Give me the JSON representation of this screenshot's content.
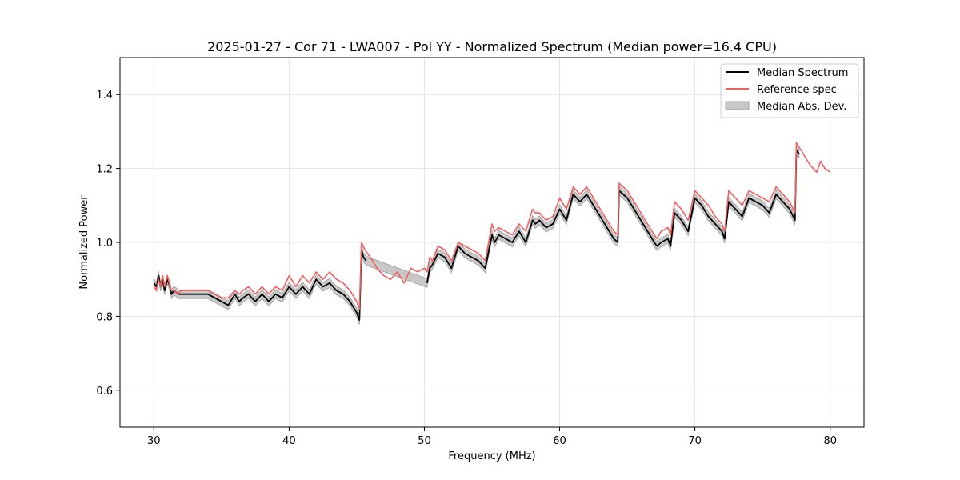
{
  "chart_data": {
    "type": "line",
    "title": "2025-01-27 - Cor 71 - LWA007 - Pol YY - Normalized Spectrum (Median power=16.4 CPU)",
    "xlabel": "Frequency (MHz)",
    "ylabel": "Normalized Power",
    "xlim": [
      27.5,
      82.5
    ],
    "ylim": [
      0.5,
      1.5
    ],
    "xticks": [
      30,
      40,
      50,
      60,
      70,
      80
    ],
    "yticks": [
      0.6,
      0.8,
      1.0,
      1.2,
      1.4
    ],
    "grid": true,
    "legend_position": "top-right",
    "colors": {
      "median": "#000000",
      "reference": "#f06060",
      "mad": "#c8c8c8",
      "mad_edge": "#a0a0a0"
    },
    "series": [
      {
        "name": "Median Spectrum",
        "x": [
          30.0,
          30.2,
          30.35,
          30.5,
          30.65,
          30.8,
          31.0,
          31.2,
          31.3,
          31.5,
          31.8,
          32.0,
          32.5,
          33.0,
          33.5,
          34.0,
          34.5,
          35.0,
          35.5,
          36.0,
          36.3,
          36.6,
          37.0,
          37.5,
          38.0,
          38.5,
          39.0,
          39.5,
          40.0,
          40.5,
          41.0,
          41.5,
          42.0,
          42.5,
          43.0,
          43.5,
          44.0,
          44.5,
          45.0,
          45.2,
          45.35,
          45.5,
          45.7,
          50.2,
          50.4,
          50.6,
          51.0,
          51.5,
          52.0,
          52.5,
          53.0,
          53.5,
          54.0,
          54.5,
          55.0,
          55.2,
          55.5,
          56.0,
          56.5,
          57.0,
          57.5,
          58.0,
          58.2,
          58.5,
          59.0,
          59.5,
          60.0,
          60.5,
          61.0,
          61.5,
          62.0,
          62.5,
          63.0,
          63.5,
          64.0,
          64.3,
          64.4,
          65.0,
          65.5,
          66.0,
          66.5,
          67.0,
          67.2,
          67.5,
          68.0,
          68.2,
          68.5,
          69.0,
          69.5,
          70.0,
          70.5,
          71.0,
          71.5,
          72.0,
          72.2,
          72.5,
          73.0,
          73.5,
          74.0,
          74.5,
          75.0,
          75.5,
          76.0,
          76.5,
          77.0,
          77.4,
          77.5,
          77.7
        ],
        "values": [
          0.89,
          0.88,
          0.91,
          0.88,
          0.9,
          0.87,
          0.9,
          0.88,
          0.86,
          0.87,
          0.86,
          0.86,
          0.86,
          0.86,
          0.86,
          0.86,
          0.85,
          0.84,
          0.83,
          0.86,
          0.84,
          0.85,
          0.86,
          0.84,
          0.86,
          0.84,
          0.86,
          0.85,
          0.88,
          0.86,
          0.88,
          0.86,
          0.9,
          0.88,
          0.89,
          0.87,
          0.86,
          0.84,
          0.81,
          0.79,
          0.98,
          0.96,
          0.95,
          0.89,
          0.93,
          0.94,
          0.97,
          0.96,
          0.93,
          0.99,
          0.97,
          0.96,
          0.95,
          0.93,
          1.02,
          1.0,
          1.02,
          1.01,
          1.0,
          1.03,
          1.0,
          1.06,
          1.05,
          1.06,
          1.04,
          1.05,
          1.09,
          1.06,
          1.13,
          1.11,
          1.13,
          1.1,
          1.07,
          1.04,
          1.01,
          1.0,
          1.14,
          1.12,
          1.09,
          1.06,
          1.03,
          1.0,
          0.99,
          1.0,
          1.01,
          0.99,
          1.08,
          1.06,
          1.03,
          1.12,
          1.1,
          1.07,
          1.05,
          1.03,
          1.01,
          1.11,
          1.09,
          1.07,
          1.12,
          1.11,
          1.1,
          1.08,
          1.13,
          1.11,
          1.09,
          1.06,
          1.25,
          1.24
        ]
      },
      {
        "name": "Reference spec",
        "x": [
          30.0,
          30.2,
          30.35,
          30.5,
          30.65,
          30.8,
          31.0,
          31.2,
          31.3,
          31.5,
          31.8,
          32.0,
          32.5,
          33.0,
          33.5,
          34.0,
          34.5,
          35.0,
          35.5,
          36.0,
          36.3,
          36.6,
          37.0,
          37.5,
          38.0,
          38.5,
          39.0,
          39.5,
          40.0,
          40.5,
          41.0,
          41.5,
          42.0,
          42.5,
          43.0,
          43.5,
          44.0,
          44.5,
          45.0,
          45.2,
          45.35,
          45.6,
          46.0,
          46.5,
          47.0,
          47.5,
          48.0,
          48.5,
          49.0,
          49.5,
          50.0,
          50.2,
          50.4,
          50.6,
          51.0,
          51.5,
          52.0,
          52.5,
          53.0,
          53.5,
          54.0,
          54.5,
          55.0,
          55.2,
          55.5,
          56.0,
          56.5,
          57.0,
          57.5,
          58.0,
          58.2,
          58.5,
          59.0,
          59.5,
          60.0,
          60.5,
          61.0,
          61.5,
          62.0,
          62.5,
          63.0,
          63.5,
          64.0,
          64.3,
          64.4,
          65.0,
          65.5,
          66.0,
          66.5,
          67.0,
          67.2,
          67.5,
          68.0,
          68.2,
          68.5,
          69.0,
          69.5,
          70.0,
          70.5,
          71.0,
          71.5,
          72.0,
          72.2,
          72.5,
          73.0,
          73.5,
          74.0,
          74.5,
          75.0,
          75.5,
          76.0,
          76.5,
          77.0,
          77.4,
          77.5,
          78.0,
          78.5,
          79.0,
          79.3,
          79.6,
          80.0
        ],
        "values": [
          0.88,
          0.87,
          0.9,
          0.88,
          0.91,
          0.88,
          0.91,
          0.88,
          0.87,
          0.87,
          0.86,
          0.87,
          0.87,
          0.87,
          0.87,
          0.87,
          0.86,
          0.85,
          0.85,
          0.87,
          0.86,
          0.87,
          0.88,
          0.86,
          0.88,
          0.86,
          0.88,
          0.87,
          0.91,
          0.88,
          0.91,
          0.89,
          0.92,
          0.9,
          0.92,
          0.9,
          0.89,
          0.87,
          0.84,
          0.82,
          1.0,
          0.98,
          0.96,
          0.93,
          0.91,
          0.9,
          0.92,
          0.89,
          0.93,
          0.92,
          0.93,
          0.92,
          0.96,
          0.95,
          0.99,
          0.98,
          0.95,
          1.0,
          0.99,
          0.98,
          0.97,
          0.95,
          1.05,
          1.03,
          1.04,
          1.03,
          1.02,
          1.05,
          1.03,
          1.09,
          1.08,
          1.08,
          1.06,
          1.07,
          1.12,
          1.09,
          1.15,
          1.13,
          1.15,
          1.12,
          1.09,
          1.06,
          1.03,
          1.02,
          1.16,
          1.14,
          1.11,
          1.08,
          1.05,
          1.02,
          1.01,
          1.03,
          1.04,
          1.02,
          1.11,
          1.09,
          1.06,
          1.14,
          1.12,
          1.1,
          1.07,
          1.05,
          1.03,
          1.14,
          1.12,
          1.1,
          1.14,
          1.13,
          1.12,
          1.11,
          1.15,
          1.13,
          1.11,
          1.08,
          1.27,
          1.24,
          1.21,
          1.19,
          1.22,
          1.2,
          1.19
        ]
      }
    ],
    "legend": [
      "Median Spectrum",
      "Reference spec",
      "Median Abs. Dev."
    ]
  }
}
